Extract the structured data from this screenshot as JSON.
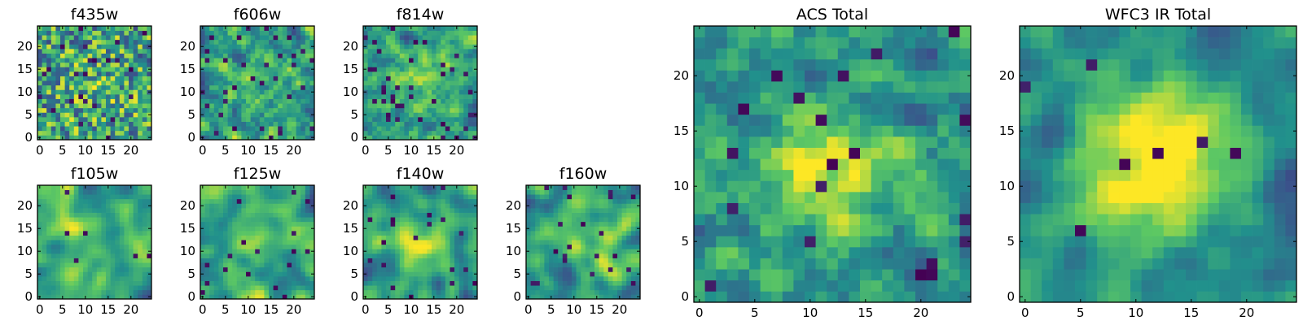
{
  "colormap": {
    "name": "viridis",
    "stops": [
      "#440154",
      "#3b528b",
      "#21918c",
      "#5ec962",
      "#fde725"
    ]
  },
  "chart_data": [
    {
      "type": "heatmap",
      "title": "f435w",
      "size": 25,
      "xticks": [
        0,
        5,
        10,
        15,
        20
      ],
      "yticks": [
        0,
        5,
        10,
        15,
        20
      ],
      "xlim": [
        0,
        25
      ],
      "ylim": [
        0,
        25
      ],
      "texture": {
        "seed": 11,
        "blob": 0.15,
        "peak": 0.1,
        "dark": 0.04
      }
    },
    {
      "type": "heatmap",
      "title": "f606w",
      "size": 25,
      "xticks": [
        0,
        5,
        10,
        15,
        20
      ],
      "yticks": [
        0,
        5,
        10,
        15,
        20
      ],
      "xlim": [
        0,
        25
      ],
      "ylim": [
        0,
        25
      ],
      "texture": {
        "seed": 23,
        "blob": 0.25,
        "peak": 0.15,
        "dark": 0.05
      }
    },
    {
      "type": "heatmap",
      "title": "f814w",
      "size": 25,
      "xticks": [
        0,
        5,
        10,
        15,
        20
      ],
      "yticks": [
        0,
        5,
        10,
        15,
        20
      ],
      "xlim": [
        0,
        25
      ],
      "ylim": [
        0,
        25
      ],
      "texture": {
        "seed": 37,
        "blob": 0.2,
        "peak": 0.25,
        "dark": 0.06
      }
    },
    {
      "type": "heatmap",
      "title": "f105w",
      "size": 25,
      "xticks": [
        0,
        5,
        10,
        15,
        20
      ],
      "yticks": [
        0,
        5,
        10,
        15,
        20
      ],
      "xlim": [
        0,
        25
      ],
      "ylim": [
        0,
        25
      ],
      "texture": {
        "seed": 41,
        "blob": 0.85,
        "peak": 0.1,
        "dark": 0.02
      }
    },
    {
      "type": "heatmap",
      "title": "f125w",
      "size": 25,
      "xticks": [
        0,
        5,
        10,
        15,
        20
      ],
      "yticks": [
        0,
        5,
        10,
        15,
        20
      ],
      "xlim": [
        0,
        25
      ],
      "ylim": [
        0,
        25
      ],
      "texture": {
        "seed": 53,
        "blob": 0.85,
        "peak": 0.1,
        "dark": 0.02
      }
    },
    {
      "type": "heatmap",
      "title": "f140w",
      "size": 25,
      "xticks": [
        0,
        5,
        10,
        15,
        20
      ],
      "yticks": [
        0,
        5,
        10,
        15,
        20
      ],
      "xlim": [
        0,
        25
      ],
      "ylim": [
        0,
        25
      ],
      "texture": {
        "seed": 67,
        "blob": 0.85,
        "peak": 0.35,
        "dark": 0.02
      }
    },
    {
      "type": "heatmap",
      "title": "f160w",
      "size": 25,
      "xticks": [
        0,
        5,
        10,
        15,
        20
      ],
      "yticks": [
        0,
        5,
        10,
        15,
        20
      ],
      "xlim": [
        0,
        25
      ],
      "ylim": [
        0,
        25
      ],
      "texture": {
        "seed": 79,
        "blob": 0.85,
        "peak": 0.3,
        "dark": 0.03
      }
    },
    {
      "type": "heatmap",
      "title": "ACS Total",
      "size": 25,
      "xticks": [
        0,
        5,
        10,
        15,
        20
      ],
      "yticks": [
        0,
        5,
        10,
        15,
        20
      ],
      "xlim": [
        0,
        25
      ],
      "ylim": [
        0,
        25
      ],
      "texture": {
        "seed": 97,
        "blob": 0.3,
        "peak": 0.55,
        "dark": 0.035
      }
    },
    {
      "type": "heatmap",
      "title": "WFC3 IR Total",
      "size": 25,
      "xticks": [
        0,
        5,
        10,
        15,
        20
      ],
      "yticks": [
        0,
        5,
        10,
        15,
        20
      ],
      "xlim": [
        0,
        25
      ],
      "ylim": [
        0,
        25
      ],
      "texture": {
        "seed": 113,
        "blob": 0.8,
        "peak": 0.85,
        "dark": 0.012
      }
    }
  ]
}
